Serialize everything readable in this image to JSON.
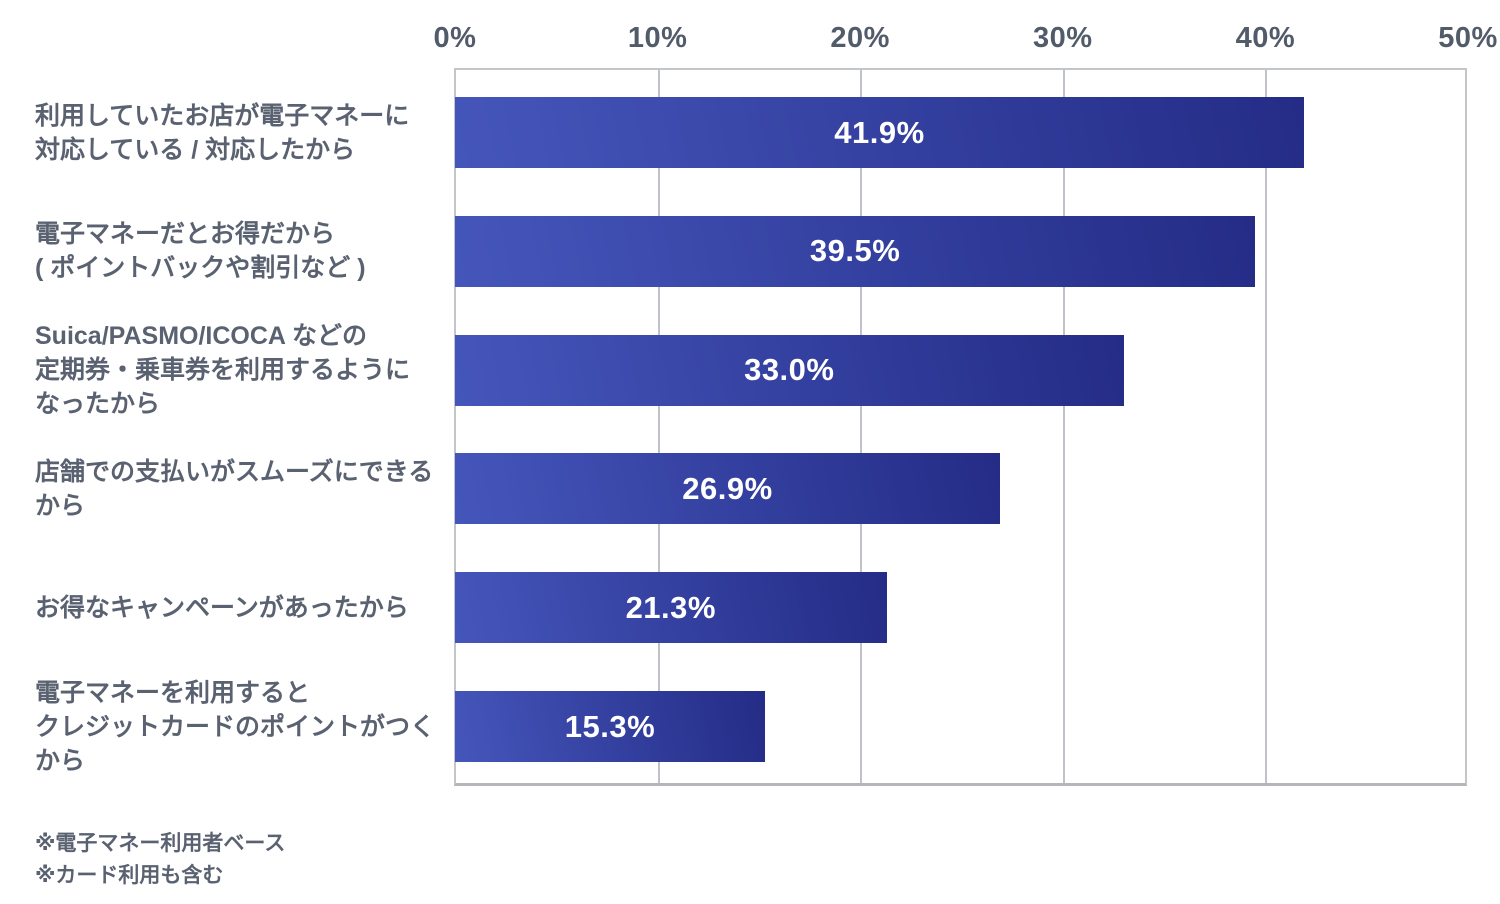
{
  "chart_data": {
    "type": "bar",
    "orientation": "horizontal",
    "title": "",
    "xlabel": "",
    "ylabel": "",
    "xlim": [
      0,
      50
    ],
    "grid": true,
    "x_ticks": [
      "0%",
      "10%",
      "20%",
      "30%",
      "40%",
      "50%"
    ],
    "categories": [
      "利用していたお店が電子マネーに\n対応している / 対応したから",
      "電子マネーだとお得だから\n( ポイントバックや割引など )",
      "Suica/PASMO/ICOCA などの\n定期券・乗車券を利用するように\nなったから",
      "店舗での支払いがスムーズにできる\nから",
      "お得なキャンペーンがあったから",
      "電子マネーを利用すると\nクレジットカードのポイントがつくから"
    ],
    "values": [
      41.9,
      39.5,
      33.0,
      26.9,
      21.3,
      15.3
    ],
    "value_labels": [
      "41.9%",
      "39.5%",
      "33.0%",
      "26.9%",
      "21.3%",
      "15.3%"
    ],
    "legend": [],
    "colors": {
      "bar_gradient_start": "#4556bb",
      "bar_gradient_end": "#242c86",
      "grid_line": "#bfc2c6",
      "axis_text": "#525b69",
      "category_text": "#5a6271",
      "value_text": "#ffffff"
    }
  },
  "footnotes": {
    "line1": "※電子マネー利用者ベース",
    "line2": "※カード利用も含む"
  }
}
